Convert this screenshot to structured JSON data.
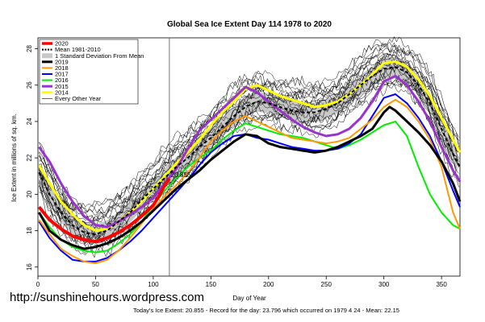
{
  "chart_data": {
    "type": "line",
    "title": "Global Sea Ice Extent Day 114 1978 to 2020",
    "xlabel": "Day of Year",
    "ylabel": "Ice Extent in millions of sq. km.",
    "xlim": [
      0,
      366
    ],
    "ylim": [
      15.5,
      28.6
    ],
    "xticks": [
      0,
      50,
      100,
      150,
      200,
      250,
      300,
      350
    ],
    "yticks": [
      16,
      18,
      20,
      22,
      24,
      26,
      28
    ],
    "current_day_marker": 114,
    "current_value_label": "20.855",
    "legend_position": "top-left",
    "series": [
      {
        "name": "2020",
        "color": "#ff0000",
        "width": 4,
        "points": [
          [
            1,
            19.3
          ],
          [
            10,
            18.6
          ],
          [
            20,
            18.1
          ],
          [
            30,
            17.7
          ],
          [
            40,
            17.5
          ],
          [
            50,
            17.4
          ],
          [
            60,
            17.6
          ],
          [
            70,
            17.9
          ],
          [
            80,
            18.3
          ],
          [
            90,
            18.8
          ],
          [
            100,
            19.4
          ],
          [
            106,
            20.0
          ],
          [
            110,
            20.5
          ],
          [
            114,
            20.855
          ]
        ]
      },
      {
        "name": "Mean 1981-2010",
        "color": "#000000",
        "width": 2,
        "dash": true,
        "points": [
          [
            1,
            21.2
          ],
          [
            10,
            20.0
          ],
          [
            20,
            19.0
          ],
          [
            30,
            18.3
          ],
          [
            40,
            17.9
          ],
          [
            50,
            17.8
          ],
          [
            60,
            18.0
          ],
          [
            70,
            18.5
          ],
          [
            80,
            19.0
          ],
          [
            90,
            19.7
          ],
          [
            100,
            20.3
          ],
          [
            110,
            20.9
          ],
          [
            120,
            21.5
          ],
          [
            130,
            22.0
          ],
          [
            140,
            22.6
          ],
          [
            150,
            23.1
          ],
          [
            160,
            23.7
          ],
          [
            170,
            24.3
          ],
          [
            180,
            24.8
          ],
          [
            190,
            25.1
          ],
          [
            200,
            25.0
          ],
          [
            210,
            24.8
          ],
          [
            220,
            24.6
          ],
          [
            230,
            24.5
          ],
          [
            240,
            24.5
          ],
          [
            250,
            24.7
          ],
          [
            260,
            25.0
          ],
          [
            270,
            25.5
          ],
          [
            280,
            26.0
          ],
          [
            290,
            26.5
          ],
          [
            300,
            26.9
          ],
          [
            310,
            27.0
          ],
          [
            320,
            26.7
          ],
          [
            330,
            26.0
          ],
          [
            340,
            25.0
          ],
          [
            350,
            23.6
          ],
          [
            360,
            22.2
          ],
          [
            366,
            21.5
          ]
        ]
      },
      {
        "name": "2019",
        "color": "#000000",
        "width": 3,
        "points": [
          [
            1,
            19.0
          ],
          [
            10,
            18.0
          ],
          [
            20,
            17.5
          ],
          [
            30,
            17.2
          ],
          [
            40,
            17.0
          ],
          [
            50,
            17.1
          ],
          [
            60,
            17.3
          ],
          [
            70,
            17.6
          ],
          [
            80,
            18.0
          ],
          [
            90,
            18.5
          ],
          [
            100,
            19.1
          ],
          [
            110,
            19.7
          ],
          [
            120,
            20.3
          ],
          [
            130,
            20.8
          ],
          [
            140,
            21.3
          ],
          [
            150,
            21.9
          ],
          [
            160,
            22.4
          ],
          [
            170,
            22.9
          ],
          [
            180,
            23.3
          ],
          [
            190,
            23.2
          ],
          [
            200,
            22.8
          ],
          [
            210,
            22.6
          ],
          [
            220,
            22.5
          ],
          [
            230,
            22.4
          ],
          [
            240,
            22.3
          ],
          [
            250,
            22.4
          ],
          [
            260,
            22.6
          ],
          [
            270,
            22.9
          ],
          [
            280,
            23.2
          ],
          [
            290,
            23.6
          ],
          [
            300,
            24.5
          ],
          [
            305,
            24.8
          ],
          [
            310,
            24.6
          ],
          [
            320,
            24.0
          ],
          [
            330,
            23.4
          ],
          [
            340,
            22.7
          ],
          [
            350,
            21.8
          ],
          [
            360,
            20.6
          ],
          [
            366,
            19.6
          ]
        ]
      },
      {
        "name": "2018",
        "color": "#ff9900",
        "width": 2,
        "points": [
          [
            1,
            18.6
          ],
          [
            10,
            17.8
          ],
          [
            20,
            17.0
          ],
          [
            30,
            16.6
          ],
          [
            40,
            16.3
          ],
          [
            50,
            16.2
          ],
          [
            60,
            16.4
          ],
          [
            70,
            16.9
          ],
          [
            80,
            17.6
          ],
          [
            90,
            18.4
          ],
          [
            100,
            19.2
          ],
          [
            110,
            19.9
          ],
          [
            120,
            20.5
          ],
          [
            130,
            21.2
          ],
          [
            140,
            22.0
          ],
          [
            150,
            22.9
          ],
          [
            160,
            23.5
          ],
          [
            170,
            24.0
          ],
          [
            180,
            24.3
          ],
          [
            190,
            24.0
          ],
          [
            200,
            23.7
          ],
          [
            210,
            23.4
          ],
          [
            220,
            23.1
          ],
          [
            230,
            23.0
          ],
          [
            240,
            22.9
          ],
          [
            250,
            22.8
          ],
          [
            260,
            22.9
          ],
          [
            270,
            23.1
          ],
          [
            280,
            23.6
          ],
          [
            290,
            24.1
          ],
          [
            300,
            24.8
          ],
          [
            310,
            25.2
          ],
          [
            320,
            24.8
          ],
          [
            330,
            24.0
          ],
          [
            340,
            23.0
          ],
          [
            350,
            21.5
          ],
          [
            360,
            19.0
          ],
          [
            366,
            18.1
          ]
        ]
      },
      {
        "name": "2017",
        "color": "#0000ff",
        "width": 2,
        "points": [
          [
            1,
            18.5
          ],
          [
            10,
            17.6
          ],
          [
            20,
            16.9
          ],
          [
            30,
            16.4
          ],
          [
            40,
            16.3
          ],
          [
            50,
            16.3
          ],
          [
            60,
            16.5
          ],
          [
            70,
            16.9
          ],
          [
            80,
            17.4
          ],
          [
            90,
            18.0
          ],
          [
            100,
            18.7
          ],
          [
            110,
            19.4
          ],
          [
            120,
            20.1
          ],
          [
            130,
            20.8
          ],
          [
            140,
            21.6
          ],
          [
            150,
            22.3
          ],
          [
            160,
            22.8
          ],
          [
            170,
            23.2
          ],
          [
            180,
            23.3
          ],
          [
            190,
            23.1
          ],
          [
            200,
            23.0
          ],
          [
            210,
            22.8
          ],
          [
            220,
            22.6
          ],
          [
            230,
            22.5
          ],
          [
            240,
            22.4
          ],
          [
            250,
            22.4
          ],
          [
            260,
            22.5
          ],
          [
            270,
            22.8
          ],
          [
            280,
            23.3
          ],
          [
            290,
            24.3
          ],
          [
            300,
            25.3
          ],
          [
            310,
            25.5
          ],
          [
            320,
            25.0
          ],
          [
            330,
            24.2
          ],
          [
            340,
            23.2
          ],
          [
            350,
            21.8
          ],
          [
            360,
            20.2
          ],
          [
            366,
            19.3
          ]
        ]
      },
      {
        "name": "2016",
        "color": "#00ee00",
        "width": 2,
        "points": [
          [
            1,
            19.0
          ],
          [
            10,
            18.2
          ],
          [
            20,
            17.5
          ],
          [
            30,
            17.1
          ],
          [
            40,
            16.9
          ],
          [
            50,
            16.8
          ],
          [
            60,
            16.9
          ],
          [
            70,
            17.3
          ],
          [
            80,
            17.8
          ],
          [
            90,
            18.5
          ],
          [
            100,
            19.4
          ],
          [
            110,
            20.2
          ],
          [
            120,
            20.9
          ],
          [
            130,
            21.5
          ],
          [
            140,
            22.0
          ],
          [
            150,
            22.4
          ],
          [
            160,
            23.0
          ],
          [
            170,
            23.5
          ],
          [
            180,
            23.9
          ],
          [
            190,
            23.7
          ],
          [
            200,
            23.5
          ],
          [
            210,
            23.3
          ],
          [
            220,
            23.2
          ],
          [
            230,
            23.1
          ],
          [
            240,
            22.9
          ],
          [
            250,
            22.7
          ],
          [
            260,
            22.5
          ],
          [
            270,
            22.7
          ],
          [
            280,
            23.0
          ],
          [
            290,
            23.4
          ],
          [
            300,
            23.8
          ],
          [
            310,
            24.0
          ],
          [
            320,
            23.2
          ],
          [
            330,
            21.5
          ],
          [
            340,
            20.0
          ],
          [
            350,
            19.0
          ],
          [
            360,
            18.3
          ],
          [
            366,
            18.1
          ]
        ]
      },
      {
        "name": "2015",
        "color": "#9933cc",
        "width": 3,
        "points": [
          [
            1,
            22.6
          ],
          [
            10,
            21.8
          ],
          [
            20,
            20.6
          ],
          [
            30,
            19.6
          ],
          [
            40,
            18.8
          ],
          [
            50,
            18.3
          ],
          [
            60,
            18.2
          ],
          [
            70,
            18.5
          ],
          [
            80,
            18.9
          ],
          [
            90,
            19.3
          ],
          [
            100,
            19.8
          ],
          [
            110,
            20.6
          ],
          [
            120,
            21.4
          ],
          [
            130,
            22.5
          ],
          [
            140,
            23.5
          ],
          [
            150,
            24.1
          ],
          [
            160,
            24.7
          ],
          [
            170,
            25.3
          ],
          [
            180,
            25.9
          ],
          [
            190,
            25.6
          ],
          [
            200,
            25.1
          ],
          [
            210,
            24.6
          ],
          [
            220,
            24.1
          ],
          [
            230,
            23.7
          ],
          [
            240,
            23.4
          ],
          [
            250,
            23.2
          ],
          [
            260,
            23.3
          ],
          [
            270,
            23.6
          ],
          [
            280,
            24.2
          ],
          [
            290,
            25.1
          ],
          [
            300,
            26.2
          ],
          [
            310,
            26.5
          ],
          [
            320,
            26.0
          ],
          [
            330,
            25.1
          ],
          [
            340,
            24.0
          ],
          [
            350,
            22.6
          ],
          [
            360,
            21.3
          ],
          [
            366,
            20.7
          ]
        ]
      },
      {
        "name": "2014",
        "color": "#ffff00",
        "width": 3,
        "points": [
          [
            1,
            21.6
          ],
          [
            10,
            20.6
          ],
          [
            20,
            19.6
          ],
          [
            30,
            18.9
          ],
          [
            40,
            18.3
          ],
          [
            50,
            18.0
          ],
          [
            60,
            18.1
          ],
          [
            70,
            18.5
          ],
          [
            80,
            19.0
          ],
          [
            90,
            19.6
          ],
          [
            100,
            20.3
          ],
          [
            110,
            21.0
          ],
          [
            120,
            21.7
          ],
          [
            130,
            22.3
          ],
          [
            140,
            23.0
          ],
          [
            150,
            23.8
          ],
          [
            160,
            24.5
          ],
          [
            170,
            25.1
          ],
          [
            180,
            25.8
          ],
          [
            190,
            26.0
          ],
          [
            200,
            25.7
          ],
          [
            210,
            25.4
          ],
          [
            220,
            25.2
          ],
          [
            230,
            25.0
          ],
          [
            240,
            24.8
          ],
          [
            250,
            24.9
          ],
          [
            260,
            25.1
          ],
          [
            270,
            25.5
          ],
          [
            280,
            26.0
          ],
          [
            290,
            26.6
          ],
          [
            300,
            27.2
          ],
          [
            310,
            27.3
          ],
          [
            320,
            27.0
          ],
          [
            330,
            26.3
          ],
          [
            340,
            25.4
          ],
          [
            350,
            24.2
          ],
          [
            360,
            23.0
          ],
          [
            366,
            22.3
          ]
        ]
      }
    ],
    "legend_extra": [
      {
        "name": "1 Standard Deviation From Mean",
        "color": "#c8c8c8"
      },
      {
        "name": "Every Other Year",
        "color": "#000000"
      }
    ]
  },
  "footer": {
    "url": "http://sunshinehours.wordpress.com",
    "stats": "Today's Ice Extent: 20.855  - Record for the day: 23.796 which occurred on 1979 4 24  - Mean: 22.15"
  }
}
